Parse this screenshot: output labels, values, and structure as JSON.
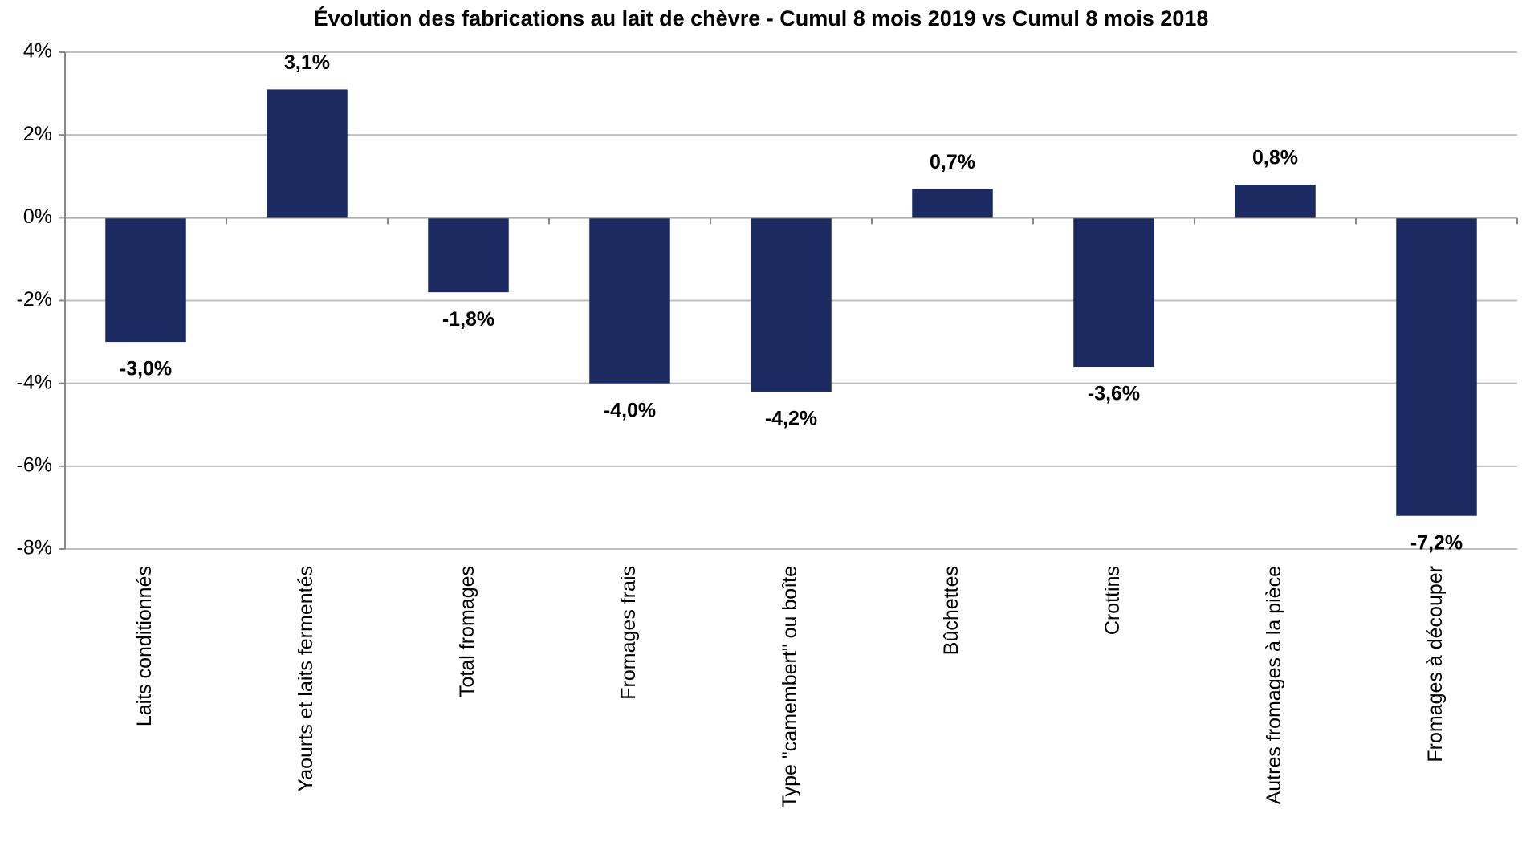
{
  "chart_data": {
    "type": "bar",
    "title": "Évolution des fabrications au lait de chèvre - Cumul 8 mois 2019 vs Cumul 8 mois 2018",
    "categories": [
      "Laits conditionnés",
      "Yaourts et laits fermentés",
      "Total fromages",
      "Fromages frais",
      "Type \"camembert\" ou boîte",
      "Bûchettes",
      "Crottins",
      "Autres fromages à la pièce",
      "Fromages à découper"
    ],
    "values": [
      -3.0,
      3.1,
      -1.8,
      -4.0,
      -4.2,
      0.7,
      -3.6,
      0.8,
      -7.2
    ],
    "value_labels": [
      "-3,0%",
      "3,1%",
      "-1,8%",
      "-4,0%",
      "-4,2%",
      "0,7%",
      "-3,6%",
      "0,8%",
      "-7,2%"
    ],
    "color": "#1b2a60",
    "ylim": [
      -8,
      4
    ],
    "yticks": [
      {
        "value": -8,
        "label": "-8%"
      },
      {
        "value": -6,
        "label": "-6%"
      },
      {
        "value": -4,
        "label": "-4%"
      },
      {
        "value": -2,
        "label": "-2%"
      },
      {
        "value": 0,
        "label": "0%"
      },
      {
        "value": 2,
        "label": "2%"
      },
      {
        "value": 4,
        "label": "4%"
      }
    ],
    "grid": true
  }
}
